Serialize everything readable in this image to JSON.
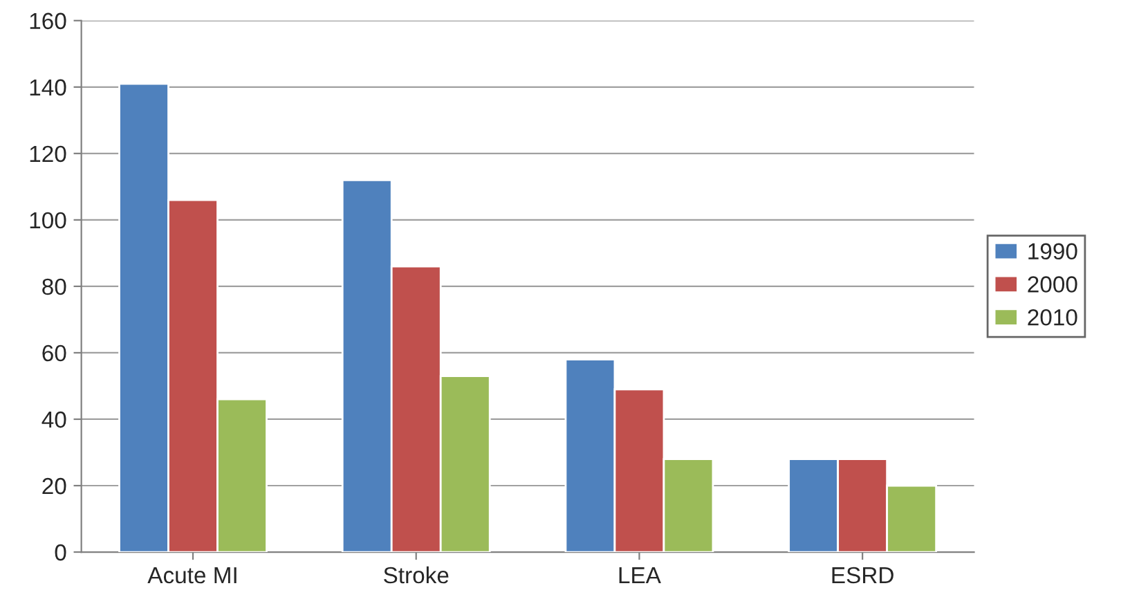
{
  "chart_data": {
    "type": "bar",
    "categories": [
      "Acute MI",
      "Stroke",
      "LEA",
      "ESRD"
    ],
    "series": [
      {
        "name": "1990",
        "color": "#4f81bd",
        "values": [
          141,
          112,
          58,
          28
        ]
      },
      {
        "name": "2000",
        "color": "#c0504d",
        "values": [
          106,
          86,
          49,
          28
        ]
      },
      {
        "name": "2010",
        "color": "#9bbb59",
        "values": [
          46,
          53,
          28,
          20
        ]
      }
    ],
    "ylim": [
      0,
      160
    ],
    "yticks": [
      0,
      20,
      40,
      60,
      80,
      100,
      120,
      140,
      160
    ],
    "grid": "y",
    "legend": "right"
  }
}
